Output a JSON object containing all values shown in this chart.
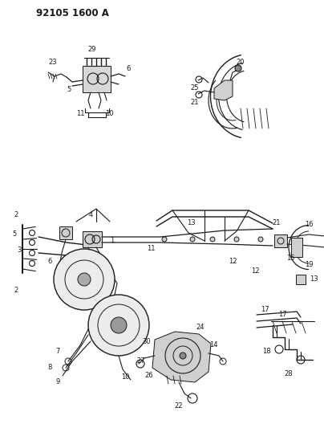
{
  "title": "92105 1600 A",
  "bg_color": "#ffffff",
  "line_color": "#1a1a1a",
  "figsize": [
    4.04,
    5.33
  ],
  "dpi": 100,
  "label_fontsize": 6.0,
  "title_fontsize": 8.5
}
